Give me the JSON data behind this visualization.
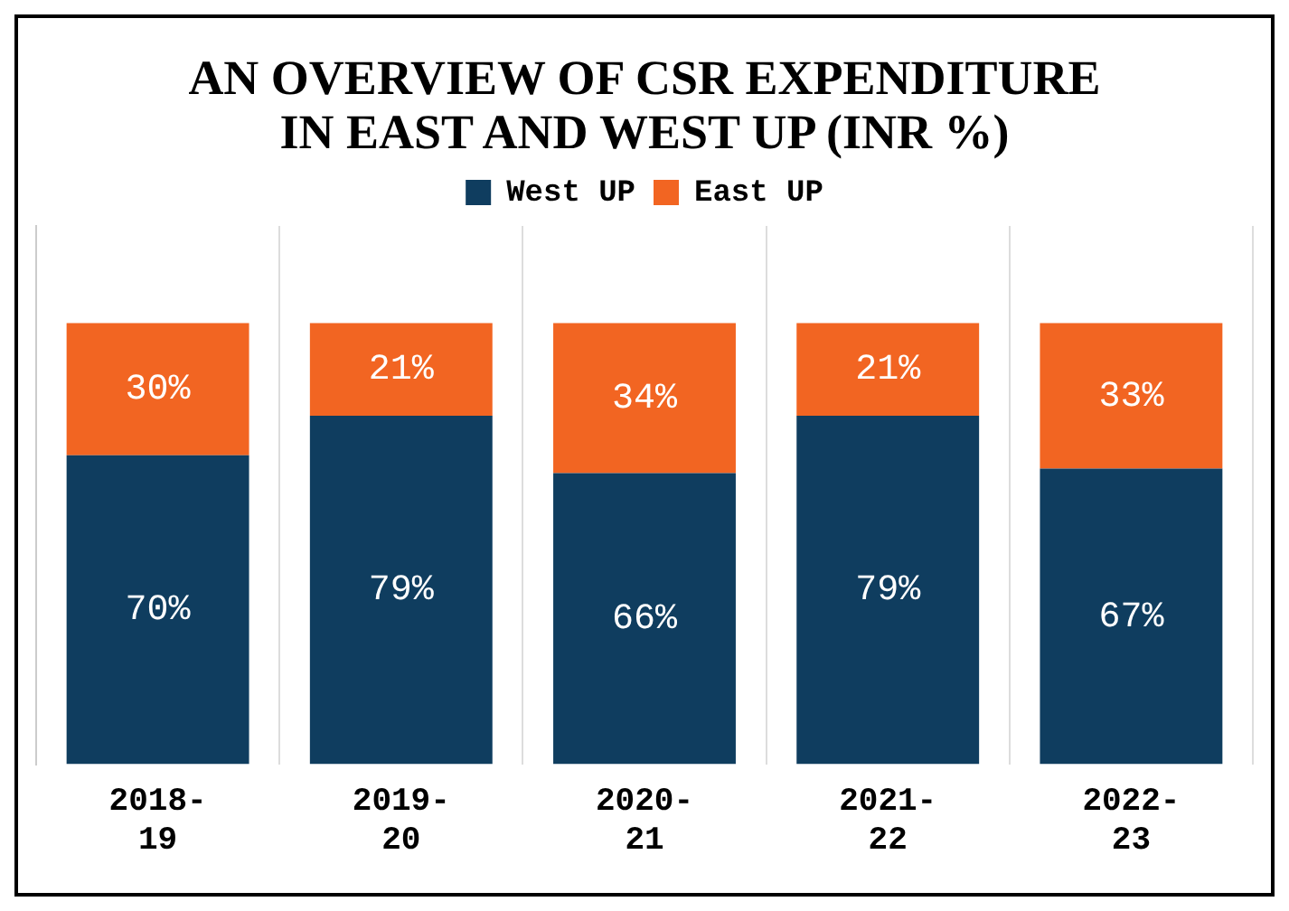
{
  "chart_data": {
    "type": "bar",
    "title": "AN OVERVIEW OF CSR EXPENDITURE IN EAST AND WEST UP (INR %)",
    "categories": [
      "2018-19",
      "2019-20",
      "2020-21",
      "2021-22",
      "2022-23"
    ],
    "stacked": true,
    "series": [
      {
        "name": "West UP",
        "color": "#0f3d5f",
        "values": [
          70,
          79,
          66,
          79,
          67
        ],
        "value_labels": [
          "70%",
          "79%",
          "66%",
          "79%",
          "67%"
        ]
      },
      {
        "name": "East UP",
        "color": "#f26522",
        "values": [
          30,
          21,
          34,
          21,
          33
        ],
        "value_labels": [
          "30%",
          "21%",
          "34%",
          "21%",
          "33%"
        ]
      }
    ],
    "ylim": [
      0,
      122
    ],
    "tick_labels": "x",
    "grid": "x",
    "legend": "top"
  }
}
